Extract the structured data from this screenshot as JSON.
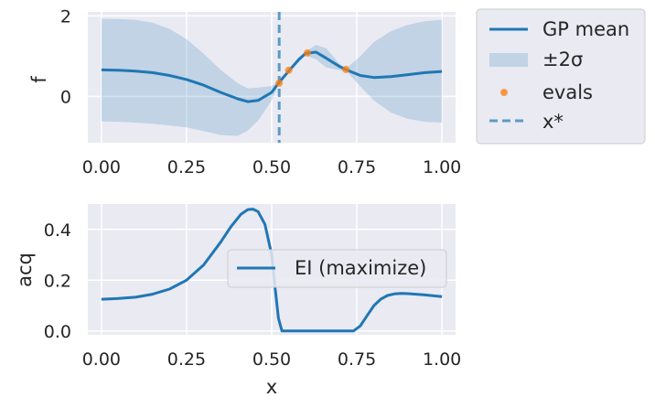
{
  "chart_data": [
    {
      "type": "line",
      "ylabel": "f",
      "xlabel": "",
      "xlim": [
        -0.04,
        1.04
      ],
      "ylim": [
        -1.15,
        2.1
      ],
      "xticks": [
        0.0,
        0.25,
        0.5,
        0.75,
        1.0
      ],
      "xtick_labels": [
        "0.00",
        "0.25",
        "0.50",
        "0.75",
        "1.00"
      ],
      "yticks": [
        0,
        2
      ],
      "ytick_labels": [
        "0",
        "2"
      ],
      "grid": true,
      "series": [
        {
          "name": "GP mean",
          "kind": "line",
          "color": "#1f77b4",
          "x": [
            0.0,
            0.05,
            0.1,
            0.15,
            0.2,
            0.25,
            0.3,
            0.35,
            0.4,
            0.43,
            0.46,
            0.5,
            0.52,
            0.55,
            0.58,
            0.6,
            0.63,
            0.66,
            0.7,
            0.72,
            0.76,
            0.8,
            0.85,
            0.9,
            0.95,
            1.0
          ],
          "y": [
            0.66,
            0.65,
            0.63,
            0.59,
            0.52,
            0.42,
            0.28,
            0.1,
            -0.06,
            -0.13,
            -0.1,
            0.1,
            0.33,
            0.63,
            0.92,
            1.07,
            1.1,
            0.95,
            0.74,
            0.66,
            0.52,
            0.47,
            0.49,
            0.54,
            0.59,
            0.62
          ]
        },
        {
          "name": "±2σ",
          "kind": "band",
          "color": "#1f77b4",
          "x": [
            0.0,
            0.05,
            0.1,
            0.15,
            0.2,
            0.25,
            0.3,
            0.35,
            0.4,
            0.43,
            0.46,
            0.5,
            0.52,
            0.55,
            0.58,
            0.6,
            0.63,
            0.66,
            0.7,
            0.72,
            0.76,
            0.8,
            0.85,
            0.9,
            0.95,
            1.0
          ],
          "upper": [
            1.93,
            1.92,
            1.9,
            1.83,
            1.68,
            1.42,
            1.06,
            0.66,
            0.33,
            0.2,
            0.22,
            0.26,
            0.36,
            0.67,
            0.98,
            1.12,
            1.28,
            1.2,
            0.8,
            0.7,
            1.0,
            1.35,
            1.62,
            1.78,
            1.87,
            1.9
          ],
          "lower": [
            -0.62,
            -0.63,
            -0.65,
            -0.68,
            -0.72,
            -0.77,
            -0.86,
            -0.96,
            -0.98,
            -0.85,
            -0.6,
            -0.1,
            0.3,
            0.6,
            0.86,
            1.02,
            0.92,
            0.72,
            0.65,
            0.62,
            0.25,
            -0.1,
            -0.4,
            -0.56,
            -0.63,
            -0.65
          ]
        },
        {
          "name": "evals",
          "kind": "scatter",
          "color": "#ff7f0e",
          "x": [
            0.522,
            0.55,
            0.605,
            0.718
          ],
          "y": [
            0.33,
            0.65,
            1.08,
            0.67
          ]
        },
        {
          "name": "x*",
          "kind": "vline",
          "color": "#1f77b4",
          "x": 0.522
        }
      ],
      "legend": {
        "placement": "outside-upper-right",
        "entries": [
          "GP mean",
          "±2σ",
          "evals",
          "x*"
        ]
      }
    },
    {
      "type": "line",
      "ylabel": "acq",
      "xlabel": "x",
      "xlim": [
        -0.04,
        1.04
      ],
      "ylim": [
        -0.015,
        0.5
      ],
      "xticks": [
        0.0,
        0.25,
        0.5,
        0.75,
        1.0
      ],
      "xtick_labels": [
        "0.00",
        "0.25",
        "0.50",
        "0.75",
        "1.00"
      ],
      "yticks": [
        0.0,
        0.2,
        0.4
      ],
      "ytick_labels": [
        "0.0",
        "0.2",
        "0.4"
      ],
      "grid": true,
      "series": [
        {
          "name": "EI (maximize)",
          "kind": "line",
          "color": "#1f77b4",
          "x": [
            0.0,
            0.05,
            0.1,
            0.15,
            0.2,
            0.25,
            0.3,
            0.35,
            0.38,
            0.41,
            0.43,
            0.445,
            0.46,
            0.48,
            0.5,
            0.51,
            0.52,
            0.53,
            0.6,
            0.7,
            0.74,
            0.76,
            0.78,
            0.8,
            0.82,
            0.84,
            0.86,
            0.88,
            0.9,
            0.95,
            1.0
          ],
          "y": [
            0.125,
            0.128,
            0.133,
            0.145,
            0.165,
            0.2,
            0.26,
            0.35,
            0.41,
            0.46,
            0.478,
            0.48,
            0.47,
            0.42,
            0.3,
            0.17,
            0.05,
            0.0,
            0.0,
            0.0,
            0.0,
            0.02,
            0.06,
            0.1,
            0.125,
            0.14,
            0.146,
            0.148,
            0.147,
            0.142,
            0.135
          ]
        }
      ],
      "legend": {
        "placement": "center-right",
        "entries": [
          "EI (maximize)"
        ]
      }
    }
  ]
}
